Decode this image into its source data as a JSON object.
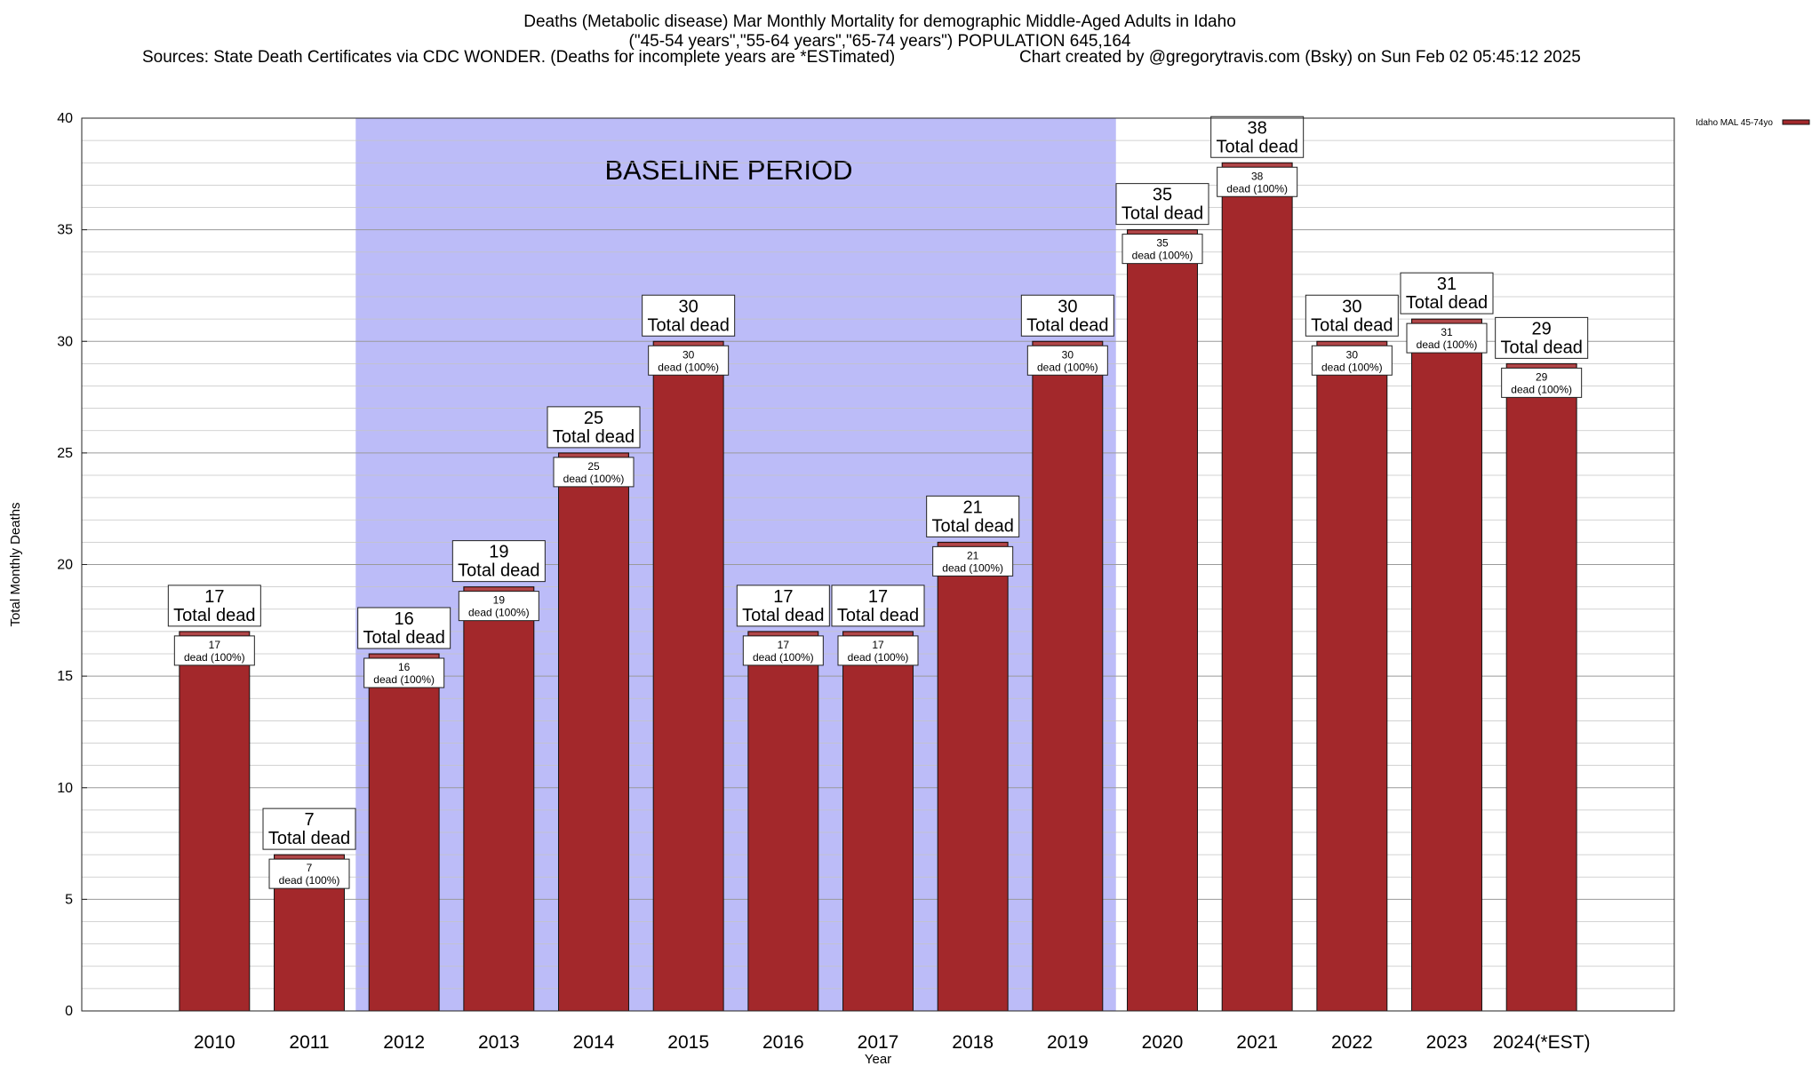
{
  "chart_data": {
    "type": "bar",
    "title": "Deaths (Metabolic disease) Mar Monthly Mortality for demographic Middle-Aged Adults in Idaho",
    "subtitle": "(\"45-54 years\",\"55-64 years\",\"65-74 years\") POPULATION 645,164",
    "sources": "Sources: State Death Certificates via CDC WONDER. (Deaths for incomplete years are *ESTimated)",
    "credit": "Chart created by @gregorytravis.com (Bsky) on Sun Feb 02 05:45:12 2025",
    "xlabel": "Year",
    "ylabel": "Total Monthly Deaths",
    "ylim": [
      0,
      40
    ],
    "yticks": [
      0,
      5,
      10,
      15,
      20,
      25,
      30,
      35,
      40
    ],
    "categories": [
      "2010",
      "2011",
      "2012",
      "2013",
      "2014",
      "2015",
      "2016",
      "2017",
      "2018",
      "2019",
      "2020",
      "2021",
      "2022",
      "2023",
      "2024(*EST)"
    ],
    "series": [
      {
        "name": "Idaho MAL 45-74yo",
        "color": "#a3282b",
        "values": [
          17,
          7,
          16,
          19,
          25,
          30,
          17,
          17,
          21,
          30,
          35,
          38,
          30,
          31,
          29
        ]
      }
    ],
    "top_label_suffix": "Total dead",
    "inner_label_suffix": "dead (100%)",
    "baseline": {
      "label": "BASELINE PERIOD",
      "from": "2012",
      "to": "2019",
      "color": "#bcbcf8"
    },
    "grid": true,
    "legend_position": "top-right"
  }
}
